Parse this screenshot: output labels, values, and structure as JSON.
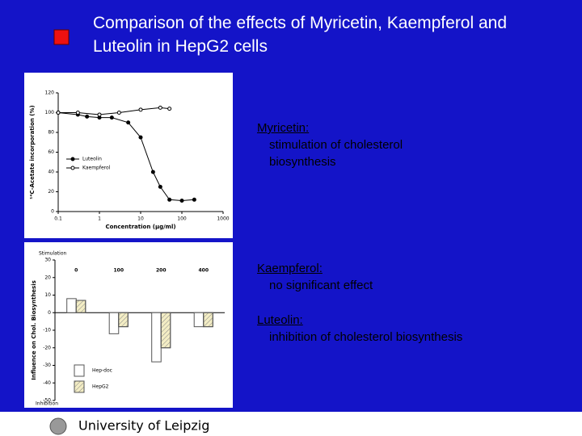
{
  "header": {
    "title": "Comparison of the effects of Myricetin, Kaempferol and Luteolin in HepG2 cells"
  },
  "notes": [
    {
      "heading": "Myricetin:",
      "lines": [
        "stimulation of cholesterol",
        "biosynthesis"
      ]
    },
    {
      "heading": "Kaempferol:",
      "lines": [
        "no significant effect"
      ]
    },
    {
      "heading": "Luteolin:",
      "lines": [
        "inhibition of cholesterol biosynthesis"
      ]
    }
  ],
  "chart_data": [
    {
      "type": "line",
      "xlabel": "Concentration (μg/ml)",
      "ylabel": "¹⁴C-Acetate incorporation (%)",
      "xscale": "log",
      "xlim": [
        0.1,
        1000
      ],
      "xticks": [
        0.1,
        1,
        10,
        100,
        1000
      ],
      "ylim": [
        0,
        120
      ],
      "yticks": [
        0,
        20,
        40,
        60,
        80,
        100,
        120
      ],
      "series": [
        {
          "name": "Luteolin",
          "color": "#000000",
          "marker": "filled",
          "x": [
            0.1,
            0.3,
            0.5,
            1,
            2,
            5,
            10,
            20,
            30,
            50,
            100,
            200
          ],
          "values": [
            100,
            98,
            96,
            95,
            95,
            90,
            75,
            40,
            25,
            12,
            11,
            12
          ]
        },
        {
          "name": "Kaempferol",
          "color": "#000000",
          "marker": "open",
          "x": [
            0.1,
            0.3,
            1,
            3,
            10,
            30,
            50
          ],
          "values": [
            100,
            100,
            98,
            100,
            103,
            105,
            104
          ]
        }
      ]
    },
    {
      "type": "bar",
      "ylabel": "Influence on Chol. Biosynthesis",
      "categories": [
        "0",
        "100",
        "200",
        "400"
      ],
      "ylim": [
        -50,
        30
      ],
      "yticks": [
        -50,
        -40,
        -30,
        -20,
        -10,
        0,
        10,
        20,
        30
      ],
      "annotations": [
        "Stimulation",
        "Inhibition"
      ],
      "series": [
        {
          "name": "Hep-doc",
          "color": "#ffffff",
          "hatch": false,
          "values": [
            8,
            -12,
            -28,
            -8
          ]
        },
        {
          "name": "HepG2",
          "color": "#f3edc4",
          "hatch": true,
          "values": [
            7,
            -8,
            -20,
            -8
          ]
        }
      ]
    }
  ],
  "footer": {
    "text": "University of Leipzig"
  }
}
